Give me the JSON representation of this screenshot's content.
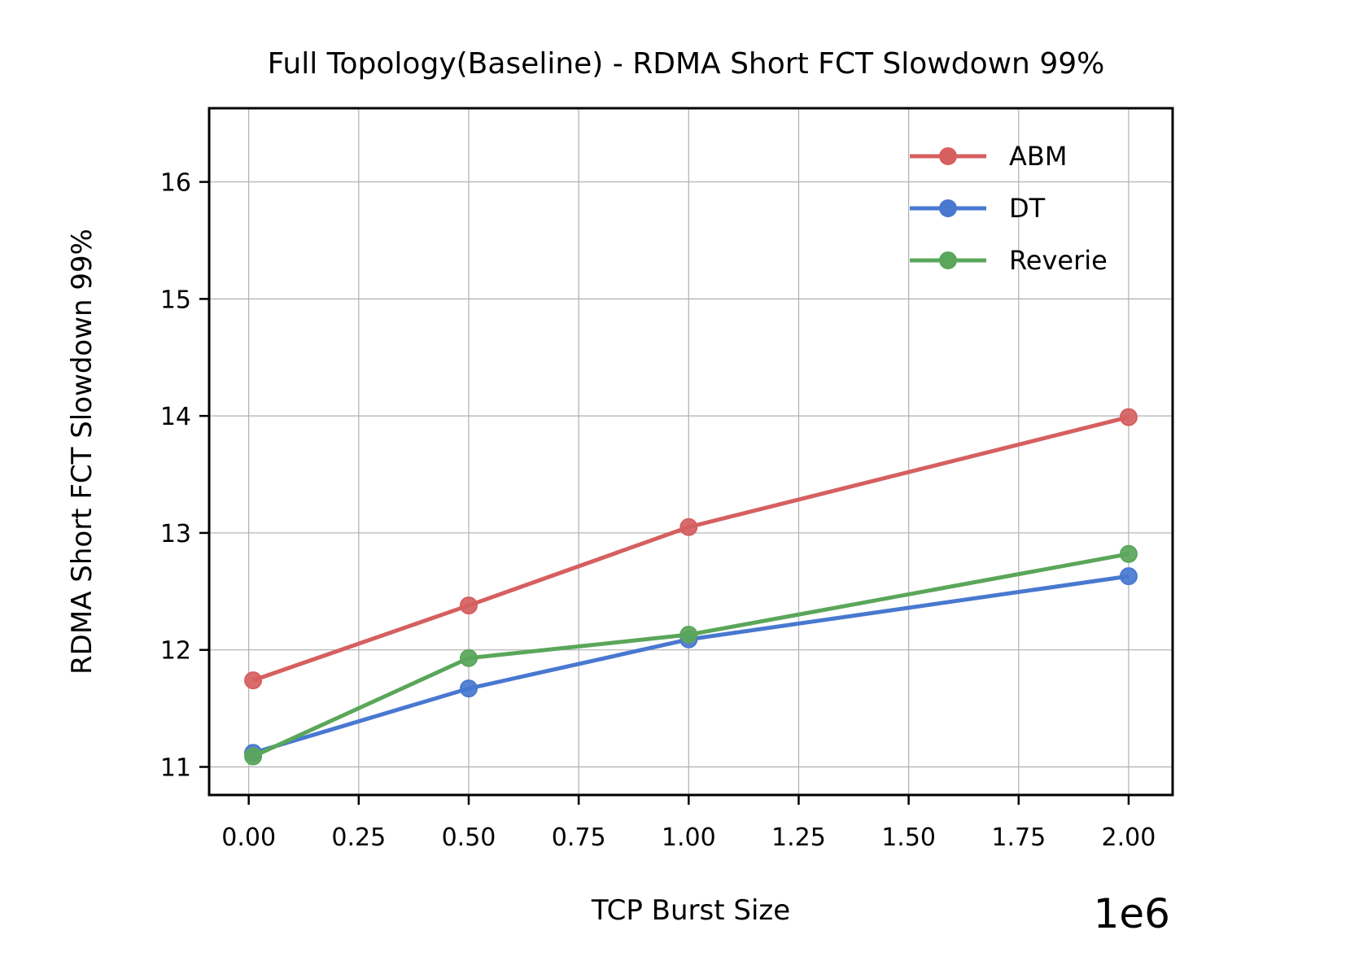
{
  "chart_data": {
    "type": "line",
    "title": "Full Topology(Baseline) - RDMA Short FCT Slowdown 99%",
    "xlabel": "TCP Burst Size",
    "ylabel": "RDMA Short FCT Slowdown 99%",
    "x_offset_label": "1e6",
    "x": [
      10000,
      500000,
      1000000,
      2000000
    ],
    "xlim": [
      -90000,
      2100000
    ],
    "ylim": [
      10.76,
      16.63
    ],
    "x_ticks": [
      0,
      250000,
      500000,
      750000,
      1000000,
      1250000,
      1500000,
      1750000,
      2000000
    ],
    "x_tick_labels": [
      "0.00",
      "0.25",
      "0.50",
      "0.75",
      "1.00",
      "1.25",
      "1.50",
      "1.75",
      "2.00"
    ],
    "y_ticks": [
      11,
      12,
      13,
      14,
      15,
      16
    ],
    "y_tick_labels": [
      "11",
      "12",
      "13",
      "14",
      "15",
      "16"
    ],
    "grid": true,
    "legend_position": "top-right",
    "series": [
      {
        "name": "ABM",
        "color": "#d65f5f",
        "values": [
          11.74,
          12.38,
          13.05,
          13.99
        ]
      },
      {
        "name": "DT",
        "color": "#4878d0",
        "values": [
          11.12,
          11.67,
          12.09,
          12.63
        ]
      },
      {
        "name": "Reverie",
        "color": "#5aa65a",
        "values": [
          11.09,
          11.93,
          12.13,
          12.82
        ]
      }
    ]
  }
}
